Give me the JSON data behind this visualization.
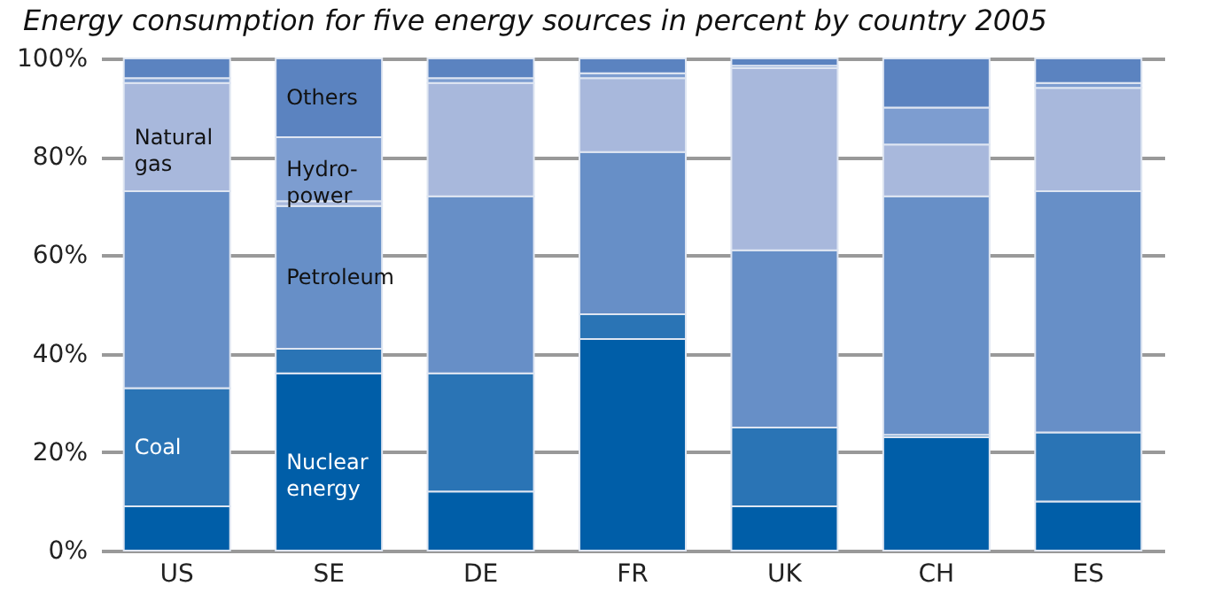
{
  "chart_data": {
    "type": "bar",
    "title": "Energy consumption for five energy sources in percent by country 2005",
    "categories": [
      "US",
      "SE",
      "DE",
      "FR",
      "UK",
      "CH",
      "ES"
    ],
    "stacked": true,
    "legend": false,
    "grid": "y",
    "ylim": [
      0,
      100
    ],
    "yticks": [
      {
        "value": 0,
        "label": "0%"
      },
      {
        "value": 20,
        "label": "20%"
      },
      {
        "value": 40,
        "label": "40%"
      },
      {
        "value": 60,
        "label": "60%"
      },
      {
        "value": 80,
        "label": "80%"
      },
      {
        "value": 100,
        "label": "100%"
      }
    ],
    "series": [
      {
        "name": "Nuclear energy",
        "color": "#005ea8",
        "values": [
          9,
          36,
          12,
          43,
          9,
          23,
          10
        ]
      },
      {
        "name": "Coal",
        "color": "#2a74b5",
        "values": [
          24,
          5,
          24,
          5,
          16,
          0.5,
          14
        ]
      },
      {
        "name": "Petroleum",
        "color": "#678fc7",
        "values": [
          40,
          29,
          36,
          33,
          36,
          48.5,
          49
        ]
      },
      {
        "name": "Natural gas",
        "color": "#a8b8dc",
        "values": [
          22,
          1,
          23,
          15,
          37,
          10.5,
          21
        ]
      },
      {
        "name": "Hydro-power",
        "color": "#7d9dd0",
        "values": [
          1,
          13,
          1,
          1,
          0.5,
          7.5,
          1
        ]
      },
      {
        "name": "Others",
        "color": "#5b83c0",
        "values": [
          4,
          16,
          4,
          3,
          1.5,
          10,
          5
        ]
      }
    ]
  }
}
